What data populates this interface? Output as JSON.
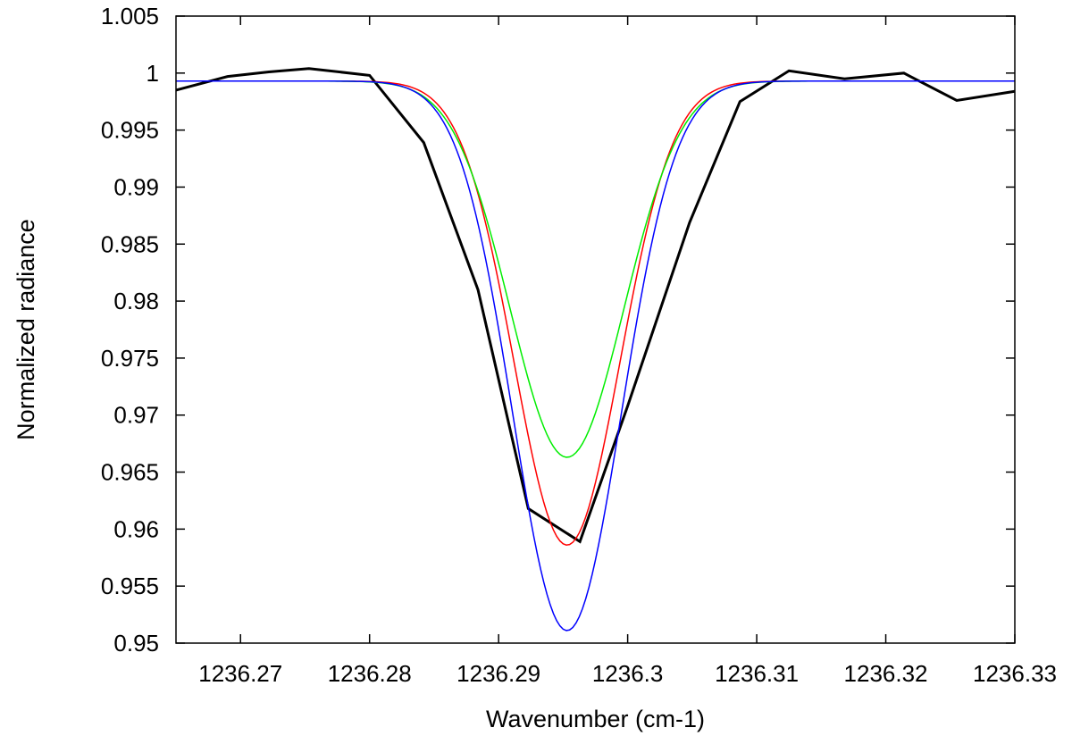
{
  "chart_data": {
    "type": "line",
    "title": "",
    "xlabel": "Wavenumber (cm-1)",
    "ylabel": "Normalized radiance",
    "xlim": [
      1236.265,
      1236.33
    ],
    "ylim": [
      0.95,
      1.005
    ],
    "xticks": [
      1236.27,
      1236.28,
      1236.29,
      1236.3,
      1236.31,
      1236.32,
      1236.33
    ],
    "xtick_labels": [
      "1236.27",
      "1236.28",
      "1236.29",
      "1236.3",
      "1236.31",
      "1236.32",
      "1236.33"
    ],
    "yticks": [
      0.95,
      0.955,
      0.96,
      0.965,
      0.97,
      0.975,
      0.98,
      0.985,
      0.99,
      0.995,
      1.0,
      1.005
    ],
    "ytick_labels": [
      "0.95",
      "0.955",
      "0.96",
      "0.965",
      "0.97",
      "0.975",
      "0.98",
      "0.985",
      "0.99",
      "0.995",
      "1",
      "1.005"
    ],
    "grid": false,
    "legend": "none",
    "series": [
      {
        "color": "#000000",
        "line_width": 3,
        "points": [
          [
            1236.265,
            0.9985
          ],
          [
            1236.269,
            0.9997
          ],
          [
            1236.2722,
            1.0001
          ],
          [
            1236.2753,
            1.0004
          ],
          [
            1236.28,
            0.9998
          ],
          [
            1236.2842,
            0.9939
          ],
          [
            1236.2884,
            0.981
          ],
          [
            1236.2923,
            0.9618
          ],
          [
            1236.2963,
            0.9589
          ],
          [
            1236.3,
            0.9708
          ],
          [
            1236.3048,
            0.9869
          ],
          [
            1236.3087,
            0.9975
          ],
          [
            1236.3125,
            1.0002
          ],
          [
            1236.3168,
            0.9995
          ],
          [
            1236.3214,
            1.0
          ],
          [
            1236.3255,
            0.9976
          ],
          [
            1236.33,
            0.9984
          ]
        ]
      },
      {
        "color": "#ff0000",
        "line_width": 1.5,
        "center": 1236.2953,
        "depth": 0.0407,
        "sigma": 0.0041,
        "baseline": 0.9993
      },
      {
        "color": "#00ee00",
        "line_width": 1.5,
        "center": 1236.2953,
        "depth": 0.033,
        "sigma": 0.0044,
        "baseline": 0.9993
      },
      {
        "color": "#0000ff",
        "line_width": 1.5,
        "center": 1236.2953,
        "depth": 0.0482,
        "sigma": 0.0042,
        "baseline": 0.9993
      }
    ]
  }
}
